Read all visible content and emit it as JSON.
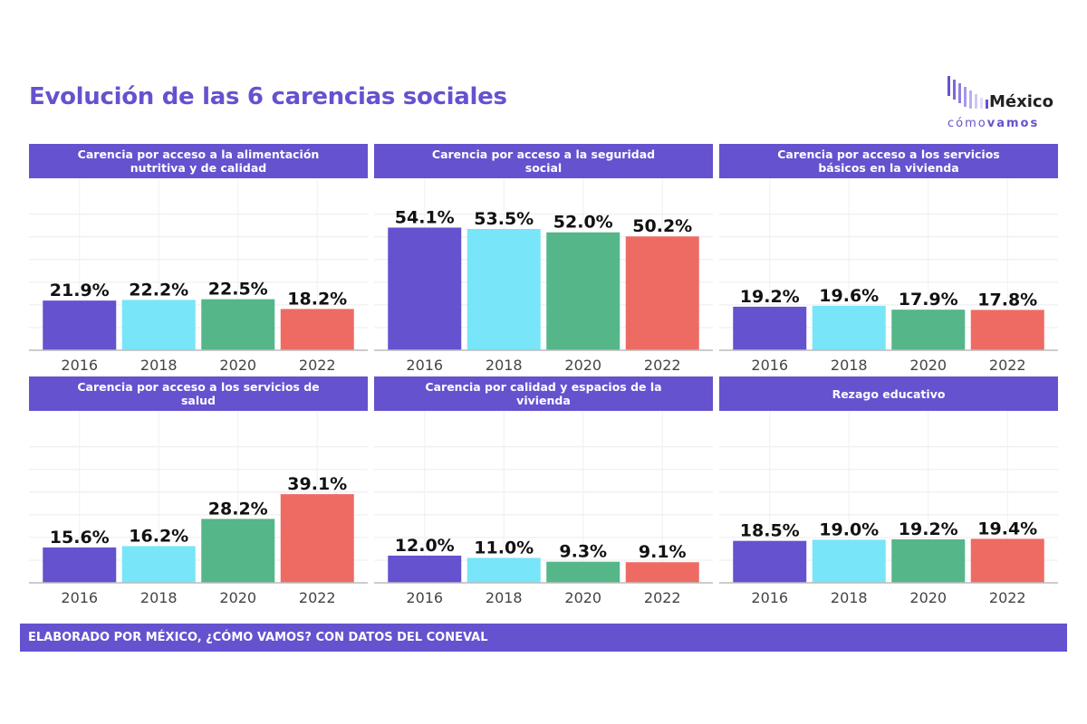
{
  "title": "Evolución de las 6 carencias sociales",
  "logo": {
    "word": "México",
    "sub_regular": "cómo",
    "sub_bold": "vamos"
  },
  "footer": "ELABORADO POR MÉXICO, ¿CÓMO VAMOS? CON DATOS DEL CONEVAL",
  "colors": {
    "accent": "#6552cf",
    "bars": [
      "#6552cf",
      "#78e5f8",
      "#55b68a",
      "#ee6b63"
    ]
  },
  "chart_data": [
    {
      "type": "bar",
      "title": "Carencia por acceso a la alimentación nutritiva y de calidad",
      "title_lines": [
        "Carencia por acceso a la alimentación",
        "nutritiva y de calidad"
      ],
      "categories": [
        "2016",
        "2018",
        "2020",
        "2022"
      ],
      "values": [
        21.9,
        22.2,
        22.5,
        18.2
      ],
      "labels": [
        "21.9%",
        "22.2%",
        "22.5%",
        "18.2%"
      ],
      "ylim": [
        0,
        60
      ]
    },
    {
      "type": "bar",
      "title": "Carencia por acceso a la seguridad social",
      "title_lines": [
        "Carencia por acceso a la seguridad",
        "social"
      ],
      "categories": [
        "2016",
        "2018",
        "2020",
        "2022"
      ],
      "values": [
        54.1,
        53.5,
        52.0,
        50.2
      ],
      "labels": [
        "54.1%",
        "53.5%",
        "52.0%",
        "50.2%"
      ],
      "ylim": [
        0,
        60
      ]
    },
    {
      "type": "bar",
      "title": "Carencia por acceso a los servicios básicos en la vivienda",
      "title_lines": [
        "Carencia por acceso a los servicios",
        "básicos en la vivienda"
      ],
      "categories": [
        "2016",
        "2018",
        "2020",
        "2022"
      ],
      "values": [
        19.2,
        19.6,
        17.9,
        17.8
      ],
      "labels": [
        "19.2%",
        "19.6%",
        "17.9%",
        "17.8%"
      ],
      "ylim": [
        0,
        60
      ]
    },
    {
      "type": "bar",
      "title": "Carencia por acceso a los servicios de salud",
      "title_lines": [
        "Carencia por acceso a los servicios de",
        "salud"
      ],
      "categories": [
        "2016",
        "2018",
        "2020",
        "2022"
      ],
      "values": [
        15.6,
        16.2,
        28.2,
        39.1
      ],
      "labels": [
        "15.6%",
        "16.2%",
        "28.2%",
        "39.1%"
      ],
      "ylim": [
        0,
        60
      ]
    },
    {
      "type": "bar",
      "title": "Carencia por calidad y espacios de la vivienda",
      "title_lines": [
        "Carencia por calidad y espacios de la",
        "vivienda"
      ],
      "categories": [
        "2016",
        "2018",
        "2020",
        "2022"
      ],
      "values": [
        12.0,
        11.0,
        9.3,
        9.1
      ],
      "labels": [
        "12.0%",
        "11.0%",
        "9.3%",
        "9.1%"
      ],
      "ylim": [
        0,
        60
      ]
    },
    {
      "type": "bar",
      "title": "Rezago educativo",
      "title_lines": [
        "Rezago educativo"
      ],
      "categories": [
        "2016",
        "2018",
        "2020",
        "2022"
      ],
      "values": [
        18.5,
        19.0,
        19.2,
        19.4
      ],
      "labels": [
        "18.5%",
        "19.0%",
        "19.2%",
        "19.4%"
      ],
      "ylim": [
        0,
        60
      ]
    }
  ]
}
